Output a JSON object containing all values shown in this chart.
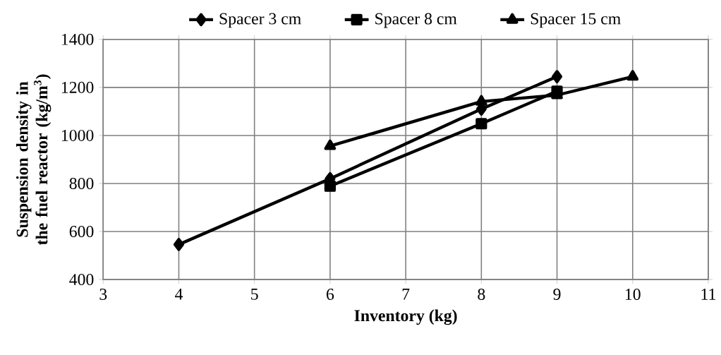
{
  "chart_data": {
    "type": "line",
    "xlabel": "Inventory (kg)",
    "ylabel": "Suspension density in the fuel reactor (kg/m$^{3}$)",
    "xlim": [
      3,
      11
    ],
    "xticks": [
      3,
      4,
      5,
      6,
      7,
      8,
      9,
      10,
      11
    ],
    "ylim": [
      400,
      1400
    ],
    "yticks": [
      400,
      600,
      800,
      1000,
      1200,
      1400
    ],
    "grid": true,
    "legend": "top",
    "series": [
      {
        "name": "Spacer 3 cm",
        "color": "#000000",
        "marker": "diamond",
        "x": [
          4,
          6,
          8,
          9
        ],
        "values": [
          546,
          820,
          1110,
          1245
        ]
      },
      {
        "name": "Spacer 8 cm",
        "color": "#000000",
        "marker": "square",
        "x": [
          6,
          8,
          9
        ],
        "values": [
          789,
          1049,
          1184
        ]
      },
      {
        "name": "Spacer 15 cm",
        "color": "#000000",
        "marker": "triangle",
        "x": [
          6,
          8,
          9,
          10
        ],
        "values": [
          956,
          1141,
          1168,
          1245
        ]
      }
    ]
  }
}
